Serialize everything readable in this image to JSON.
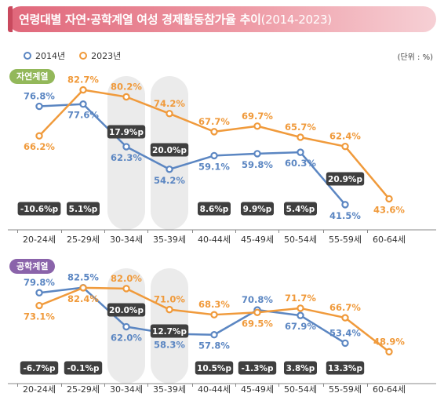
{
  "header": {
    "title": "연령대별 자연·공학계열 여성 경제활동참가율 추이",
    "period": "(2014-2023)"
  },
  "legend": {
    "label_2014": "2014년",
    "label_2023": "2023년"
  },
  "unit": "(단위 : %)",
  "colors": {
    "s2014": "#5b86c2",
    "s2023": "#f09a3b",
    "diffBox": "#3f3f3f",
    "highlight": "#ebebeb",
    "natural": "#93b85a",
    "engineering": "#8a63aa"
  },
  "chart_data": [
    {
      "type": "line",
      "panel_label": "자연계열",
      "categories": [
        "20-24세",
        "25-29세",
        "30-34세",
        "35-39세",
        "40-44세",
        "45-49세",
        "50-54세",
        "55-59세",
        "60-64세"
      ],
      "series": [
        {
          "name": "2014년",
          "values": [
            76.8,
            77.6,
            62.3,
            54.2,
            59.1,
            59.8,
            60.3,
            41.5,
            null
          ],
          "labels": [
            "76.8%",
            "77.6%",
            "62.3%",
            "54.2%",
            "59.1%",
            "59.8%",
            "60.3%",
            "41.5%",
            ""
          ]
        },
        {
          "name": "2023년",
          "values": [
            66.2,
            82.7,
            80.2,
            74.2,
            67.7,
            69.7,
            65.7,
            62.4,
            43.6
          ],
          "labels": [
            "66.2%",
            "82.7%",
            "80.2%",
            "74.2%",
            "67.7%",
            "69.7%",
            "65.7%",
            "62.4%",
            "43.6%"
          ]
        }
      ],
      "differences": [
        "-10.6%p",
        "5.1%p",
        "17.9%p",
        "20.0%p",
        "8.6%p",
        "9.9%p",
        "5.4%p",
        "20.9%p",
        ""
      ],
      "highlighted_categories": [
        "30-34세",
        "35-39세"
      ]
    },
    {
      "type": "line",
      "panel_label": "공학계열",
      "categories": [
        "20-24세",
        "25-29세",
        "30-34세",
        "35-39세",
        "40-44세",
        "45-49세",
        "50-54세",
        "55-59세",
        "60-64세"
      ],
      "series": [
        {
          "name": "2014년",
          "values": [
            79.8,
            82.5,
            62.0,
            58.3,
            57.8,
            70.8,
            67.9,
            53.4,
            null
          ],
          "labels": [
            "79.8%",
            "82.5%",
            "62.0%",
            "58.3%",
            "57.8%",
            "70.8%",
            "67.9%",
            "53.4%",
            ""
          ]
        },
        {
          "name": "2023년",
          "values": [
            73.1,
            82.4,
            82.0,
            71.0,
            68.3,
            69.5,
            71.7,
            66.7,
            48.9
          ],
          "labels": [
            "73.1%",
            "82.4%",
            "82.0%",
            "71.0%",
            "68.3%",
            "69.5%",
            "71.7%",
            "66.7%",
            "48.9%"
          ]
        }
      ],
      "differences": [
        "-6.7%p",
        "-0.1%p",
        "20.0%p",
        "12.7%p",
        "10.5%p",
        "-1.3%p",
        "3.8%p",
        "13.3%p",
        ""
      ],
      "highlighted_categories": [
        "30-34세",
        "35-39세"
      ]
    }
  ]
}
